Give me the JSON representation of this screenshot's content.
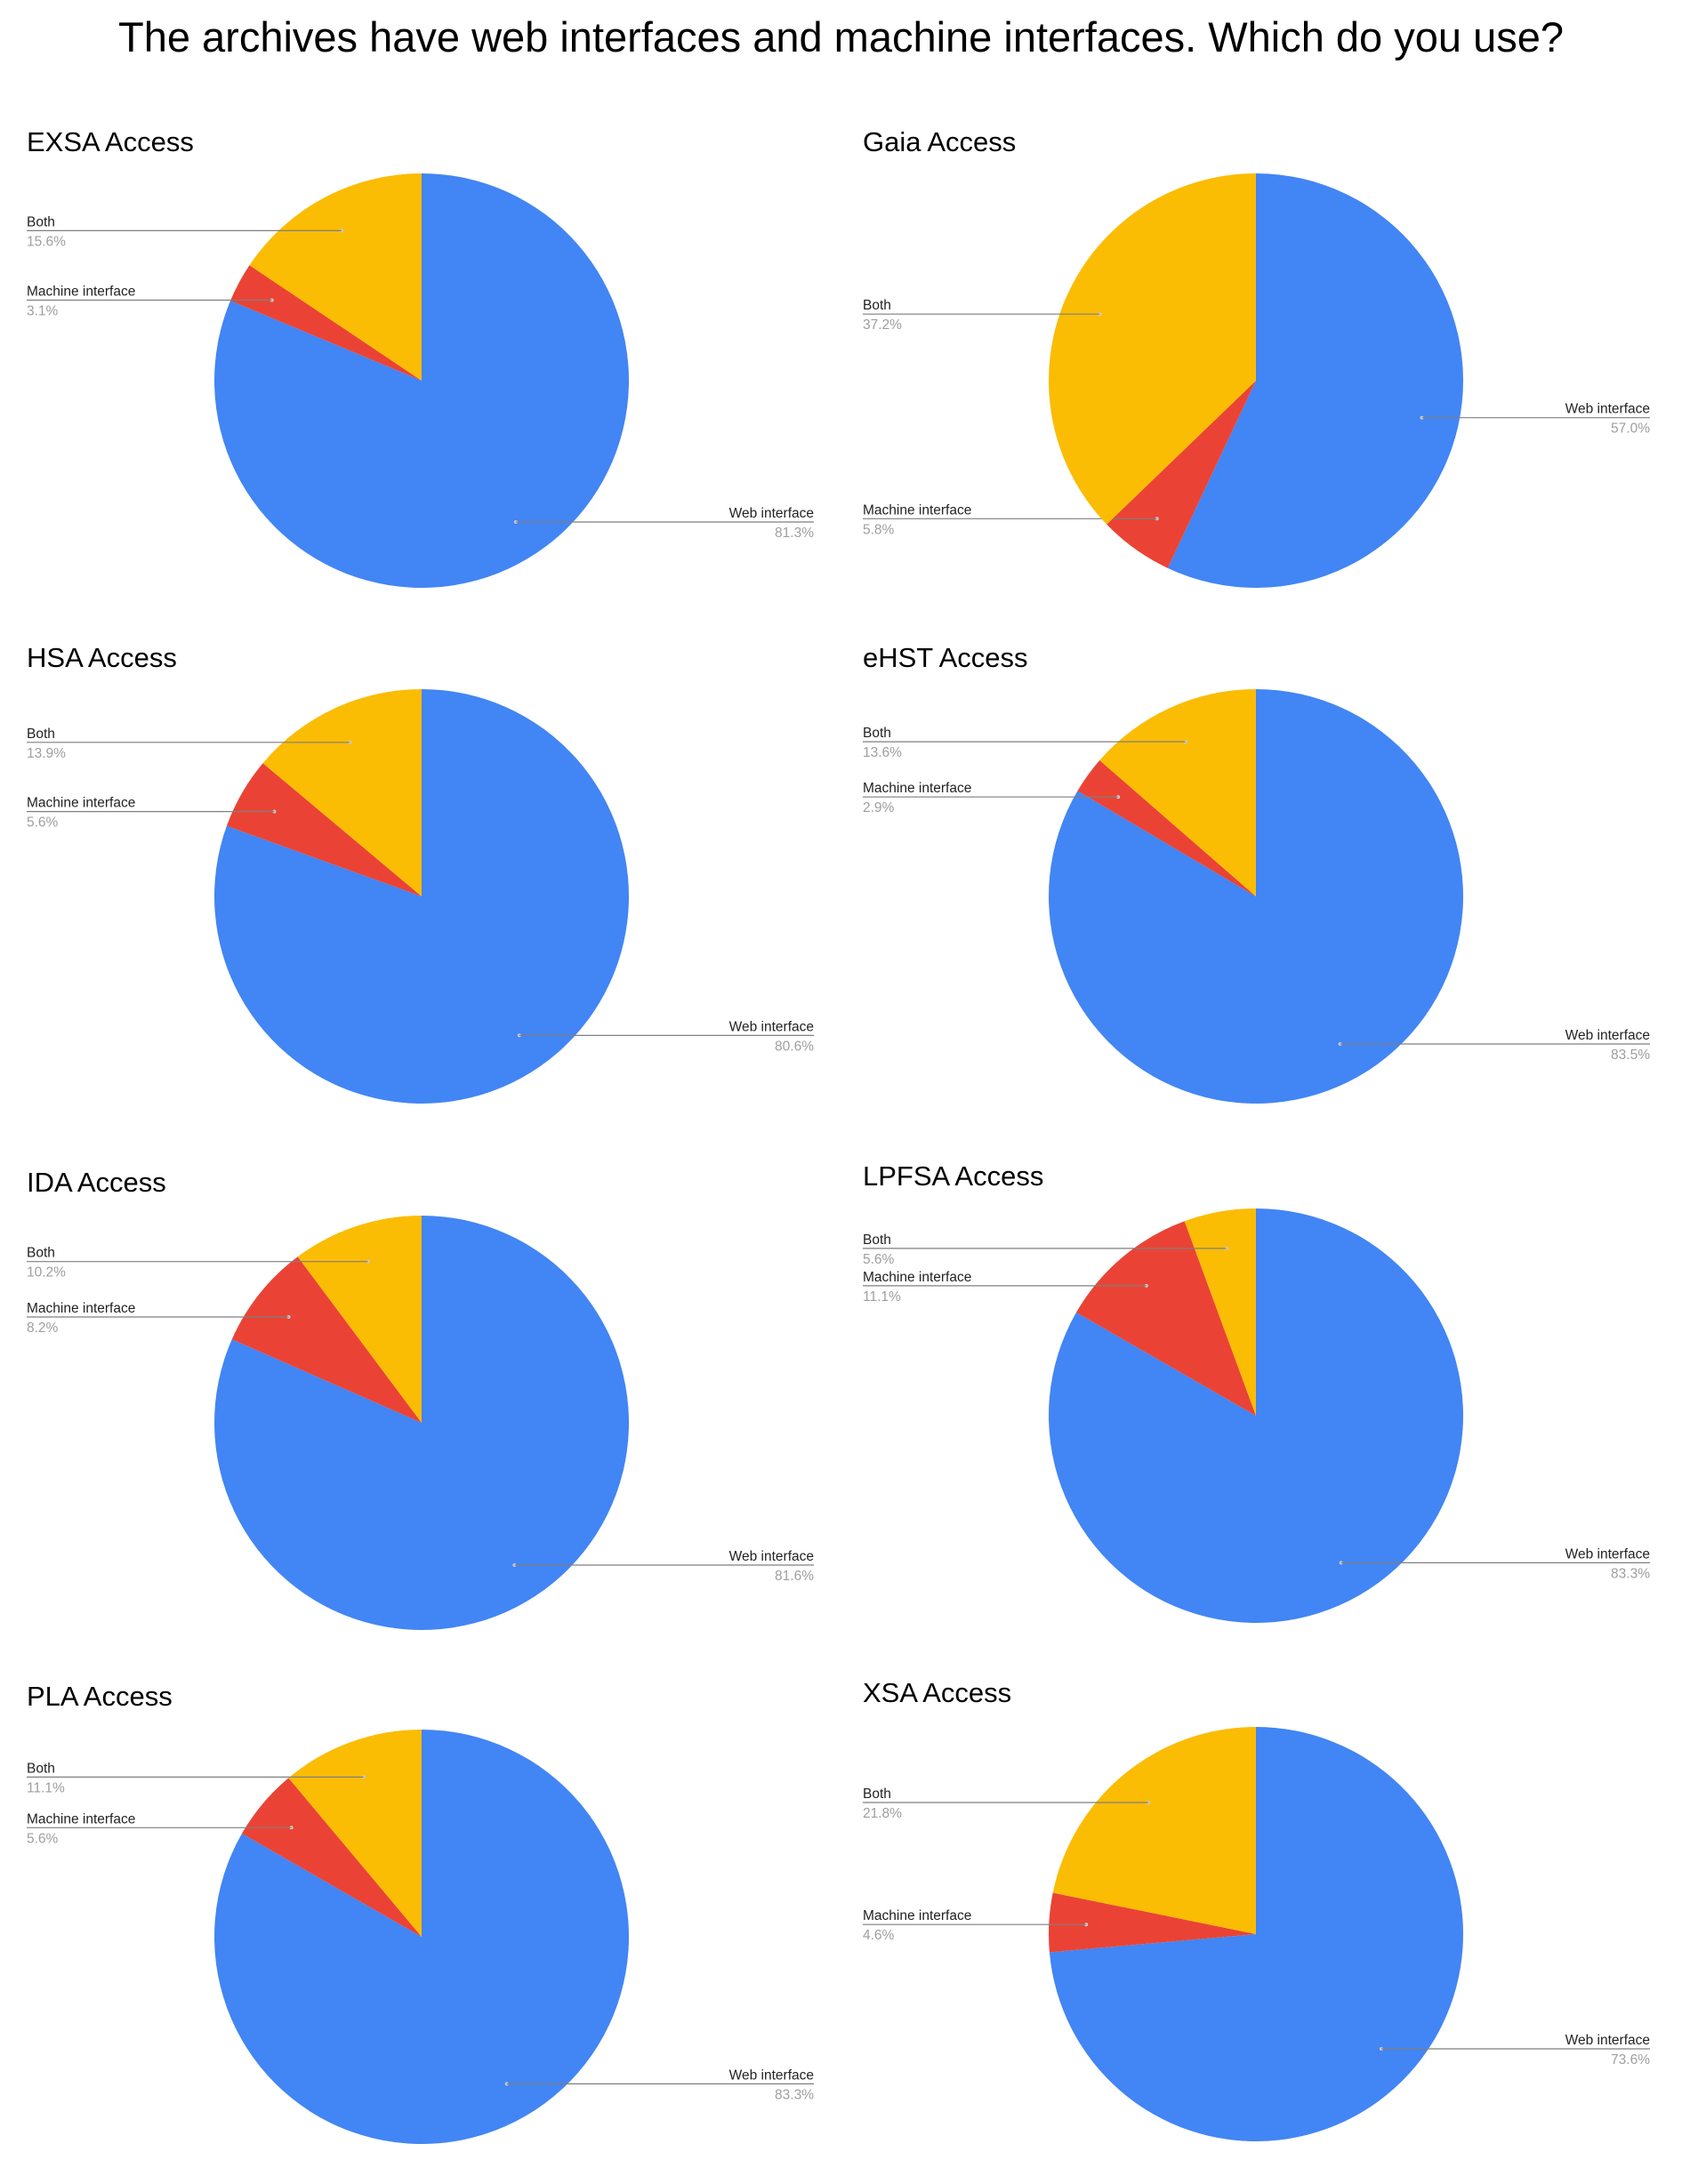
{
  "page": {
    "title": "The archives have web interfaces and machine interfaces. Which do you use?"
  },
  "colors": {
    "web_interface": "#4285F4",
    "machine_interface": "#EA4335",
    "both": "#FBBC04"
  },
  "chart_data": [
    {
      "type": "pie",
      "title": "EXSA  Access",
      "slices": [
        {
          "label": "Web interface",
          "value": 81.3,
          "pct": "81.3%"
        },
        {
          "label": "Machine interface",
          "value": 3.1,
          "pct": "3.1%"
        },
        {
          "label": "Both",
          "value": 15.6,
          "pct": "15.6%"
        }
      ]
    },
    {
      "type": "pie",
      "title": "Gaia Access",
      "slices": [
        {
          "label": "Web interface",
          "value": 57.0,
          "pct": "57.0%"
        },
        {
          "label": "Machine interface",
          "value": 5.8,
          "pct": "5.8%"
        },
        {
          "label": "Both",
          "value": 37.2,
          "pct": "37.2%"
        }
      ]
    },
    {
      "type": "pie",
      "title": "HSA Access",
      "slices": [
        {
          "label": "Web interface",
          "value": 80.6,
          "pct": "80.6%"
        },
        {
          "label": "Machine interface",
          "value": 5.6,
          "pct": "5.6%"
        },
        {
          "label": "Both",
          "value": 13.9,
          "pct": "13.9%"
        }
      ]
    },
    {
      "type": "pie",
      "title": "eHST Access",
      "slices": [
        {
          "label": "Web interface",
          "value": 83.5,
          "pct": "83.5%"
        },
        {
          "label": "Machine interface",
          "value": 2.9,
          "pct": "2.9%"
        },
        {
          "label": "Both",
          "value": 13.6,
          "pct": "13.6%"
        }
      ]
    },
    {
      "type": "pie",
      "title": "IDA  Access",
      "slices": [
        {
          "label": "Web interface",
          "value": 81.6,
          "pct": "81.6%"
        },
        {
          "label": "Machine interface",
          "value": 8.2,
          "pct": "8.2%"
        },
        {
          "label": "Both",
          "value": 10.2,
          "pct": "10.2%"
        }
      ]
    },
    {
      "type": "pie",
      "title": "LPFSA Access",
      "slices": [
        {
          "label": "Web interface",
          "value": 83.3,
          "pct": "83.3%"
        },
        {
          "label": "Machine interface",
          "value": 11.1,
          "pct": "11.1%"
        },
        {
          "label": "Both",
          "value": 5.6,
          "pct": "5.6%"
        }
      ]
    },
    {
      "type": "pie",
      "title": "PLA Access",
      "slices": [
        {
          "label": "Web interface",
          "value": 83.3,
          "pct": "83.3%"
        },
        {
          "label": "Machine interface",
          "value": 5.6,
          "pct": "5.6%"
        },
        {
          "label": "Both",
          "value": 11.1,
          "pct": "11.1%"
        }
      ]
    },
    {
      "type": "pie",
      "title": "XSA Access",
      "slices": [
        {
          "label": "Web interface",
          "value": 73.6,
          "pct": "73.6%"
        },
        {
          "label": "Machine interface",
          "value": 4.6,
          "pct": "4.6%"
        },
        {
          "label": "Both",
          "value": 21.8,
          "pct": "21.8%"
        }
      ]
    }
  ]
}
